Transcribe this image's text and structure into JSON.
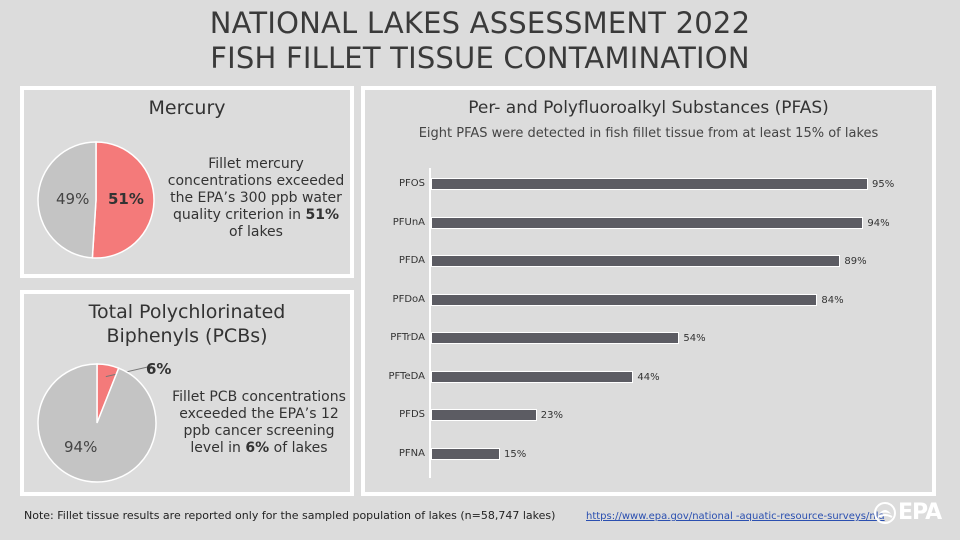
{
  "header": {
    "title_line1": "NATIONAL LAKES ASSESSMENT 2022",
    "title_line2": "FISH FILLET TISSUE CONTAMINATION"
  },
  "mercury": {
    "title": "Mercury",
    "exceed_label": "51%",
    "not_exceed_label": "49%",
    "desc_lines": [
      "Fillet mercury",
      "concentrations exceeded",
      "the EPA’s 300 ppb water",
      "quality criterion in"
    ],
    "desc_highlight": "51%",
    "desc_end": "of lakes"
  },
  "pcb": {
    "title_line1": "Total Polychlorinated",
    "title_line2": "Biphenyls (PCBs)",
    "exceed_label": "6%",
    "not_exceed_label": "94%",
    "desc_lines": [
      "Fillet PCB concentrations",
      "exceeded the EPA’s 12",
      "ppb cancer screening"
    ],
    "desc_prefix": "level in",
    "desc_highlight": "6%",
    "desc_suffix": "of lakes"
  },
  "pfas": {
    "title": "Per- and Polyfluoroalkyl Substances (PFAS)",
    "subtitle": "Eight PFAS were detected in fish fillet tissue from at least 15% of lakes"
  },
  "chart_data": [
    {
      "type": "pie",
      "title": "Mercury",
      "slices": [
        {
          "label": "51%",
          "value": 51,
          "color": "#f47a7a"
        },
        {
          "label": "49%",
          "value": 49,
          "color": "#c4c4c4"
        }
      ]
    },
    {
      "type": "pie",
      "title": "Total Polychlorinated Biphenyls (PCBs)",
      "slices": [
        {
          "label": "6%",
          "value": 6,
          "color": "#f47a7a"
        },
        {
          "label": "94%",
          "value": 94,
          "color": "#c4c4c4"
        }
      ]
    },
    {
      "type": "bar",
      "orientation": "horizontal",
      "title": "Per- and Polyfluoroalkyl Substances (PFAS)",
      "categories": [
        "PFOS",
        "PFUnA",
        "PFDA",
        "PFDoA",
        "PFTrDA",
        "PFTeDA",
        "PFDS",
        "PFNA"
      ],
      "values": [
        95,
        94,
        89,
        84,
        54,
        44,
        23,
        15
      ],
      "value_labels": [
        "95%",
        "94%",
        "89%",
        "84%",
        "54%",
        "44%",
        "23%",
        "15%"
      ],
      "xlim": [
        0,
        100
      ],
      "bar_color": "#5c5c63"
    }
  ],
  "footer": {
    "note": "Note: Fillet tissue results are reported only for the sampled population of lakes (n=58,747 lakes)",
    "link": "https://www.epa.gov/national -aquatic-resource-surveys/nla",
    "logo_text": "EPA",
    "logo_icon": "epa-flower-icon"
  }
}
